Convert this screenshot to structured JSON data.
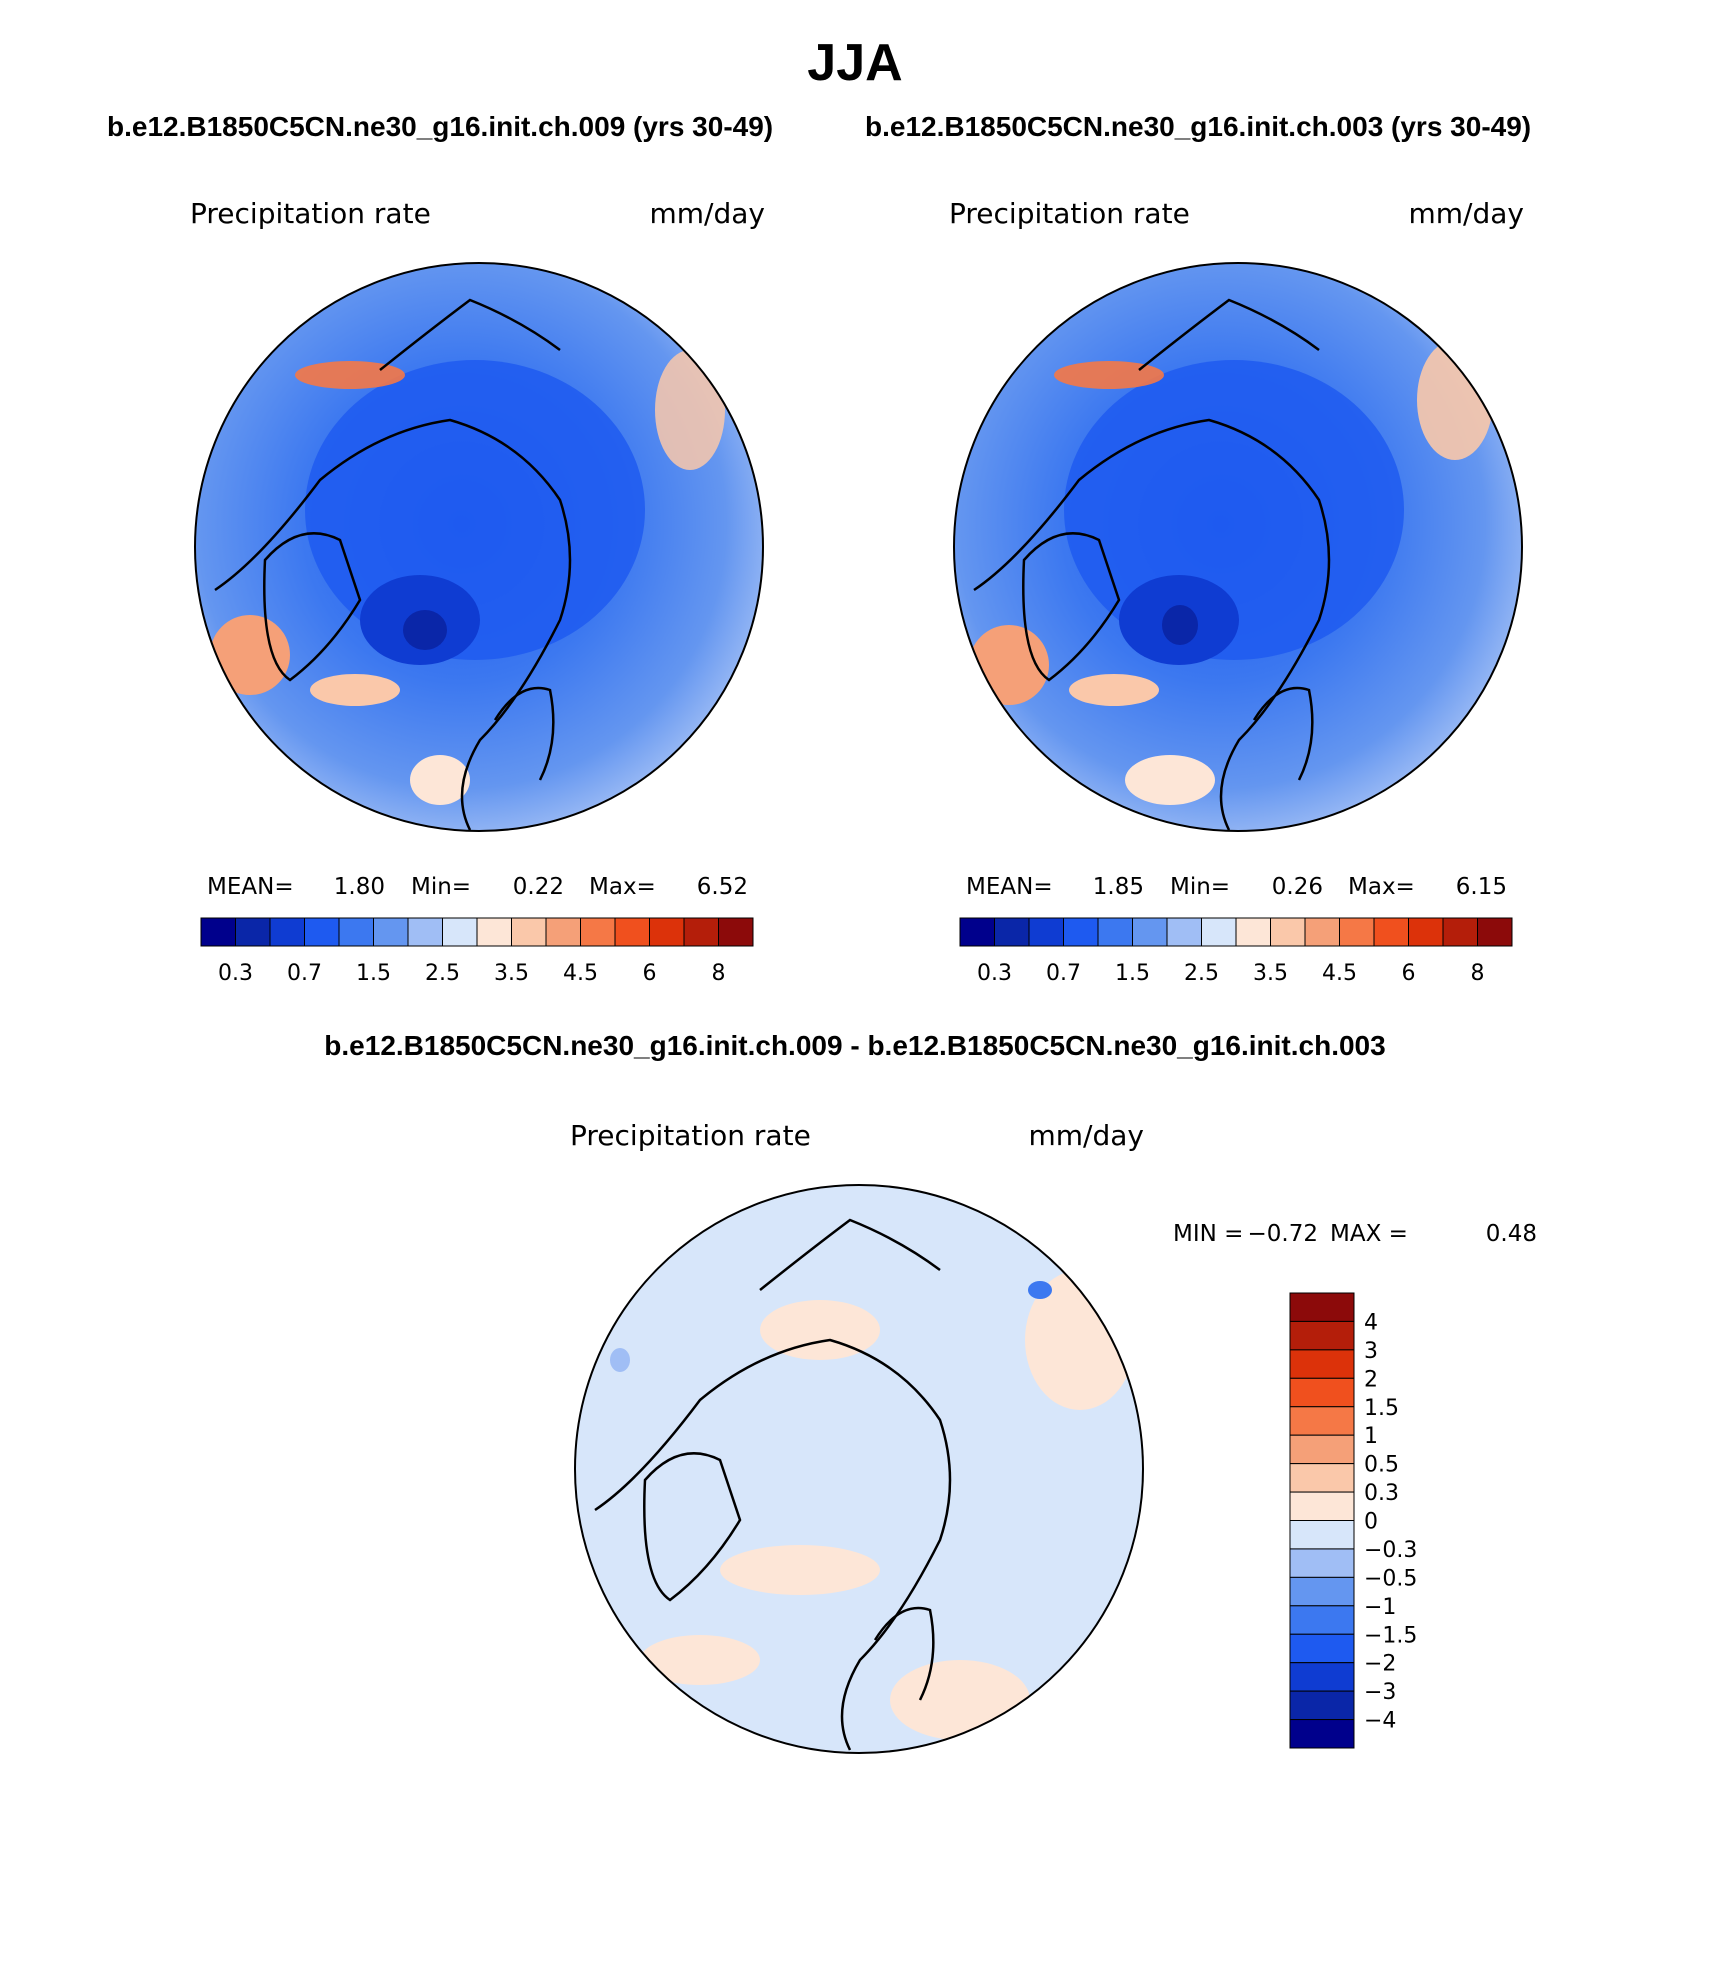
{
  "figure_title": "JJA",
  "color_ramp": [
    "#00008c",
    "#0a26a8",
    "#0f3cd2",
    "#1e5af0",
    "#3c78f0",
    "#6496f0",
    "#a0bef5",
    "#d7e6fa",
    "#fde6d7",
    "#fac8aa",
    "#f5a078",
    "#f57846",
    "#f0501e",
    "#dc320a",
    "#b41e0a",
    "#8c0a0a"
  ],
  "chart_data": [
    {
      "type": "heatmap",
      "projection": "north-polar-stereographic",
      "title": "b.e12.B1850C5CN.ne30_g16.init.ch.009 (yrs 30-49)",
      "variable": "Precipitation rate",
      "units": "mm/day",
      "stats": {
        "mean_label": "MEAN=",
        "mean": "1.80",
        "min_label": "Min=",
        "min": "0.22",
        "max_label": "Max=",
        "max": "6.52"
      },
      "colorbar": {
        "orientation": "horizontal",
        "tick_labels": [
          "0.3",
          "0.7",
          "1.5",
          "2.5",
          "3.5",
          "4.5",
          "6",
          "8"
        ]
      }
    },
    {
      "type": "heatmap",
      "projection": "north-polar-stereographic",
      "title": "b.e12.B1850C5CN.ne30_g16.init.ch.003 (yrs 30-49)",
      "variable": "Precipitation rate",
      "units": "mm/day",
      "stats": {
        "mean_label": "MEAN=",
        "mean": "1.85",
        "min_label": "Min=",
        "min": "0.26",
        "max_label": "Max=",
        "max": "6.15"
      },
      "colorbar": {
        "orientation": "horizontal",
        "tick_labels": [
          "0.3",
          "0.7",
          "1.5",
          "2.5",
          "3.5",
          "4.5",
          "6",
          "8"
        ]
      }
    },
    {
      "type": "heatmap",
      "projection": "north-polar-stereographic",
      "title": "b.e12.B1850C5CN.ne30_g16.init.ch.009 - b.e12.B1850C5CN.ne30_g16.init.ch.003",
      "variable": "Precipitation rate",
      "units": "mm/day",
      "stats": {
        "min_label": "MIN =",
        "min": "−0.72",
        "max_label": "MAX =",
        "max": "0.48"
      },
      "colorbar": {
        "orientation": "vertical",
        "tick_labels": [
          "4",
          "3",
          "2",
          "1.5",
          "1",
          "0.5",
          "0.3",
          "0",
          "−0.3",
          "−0.5",
          "−1",
          "−1.5",
          "−2",
          "−3",
          "−4"
        ]
      }
    }
  ]
}
